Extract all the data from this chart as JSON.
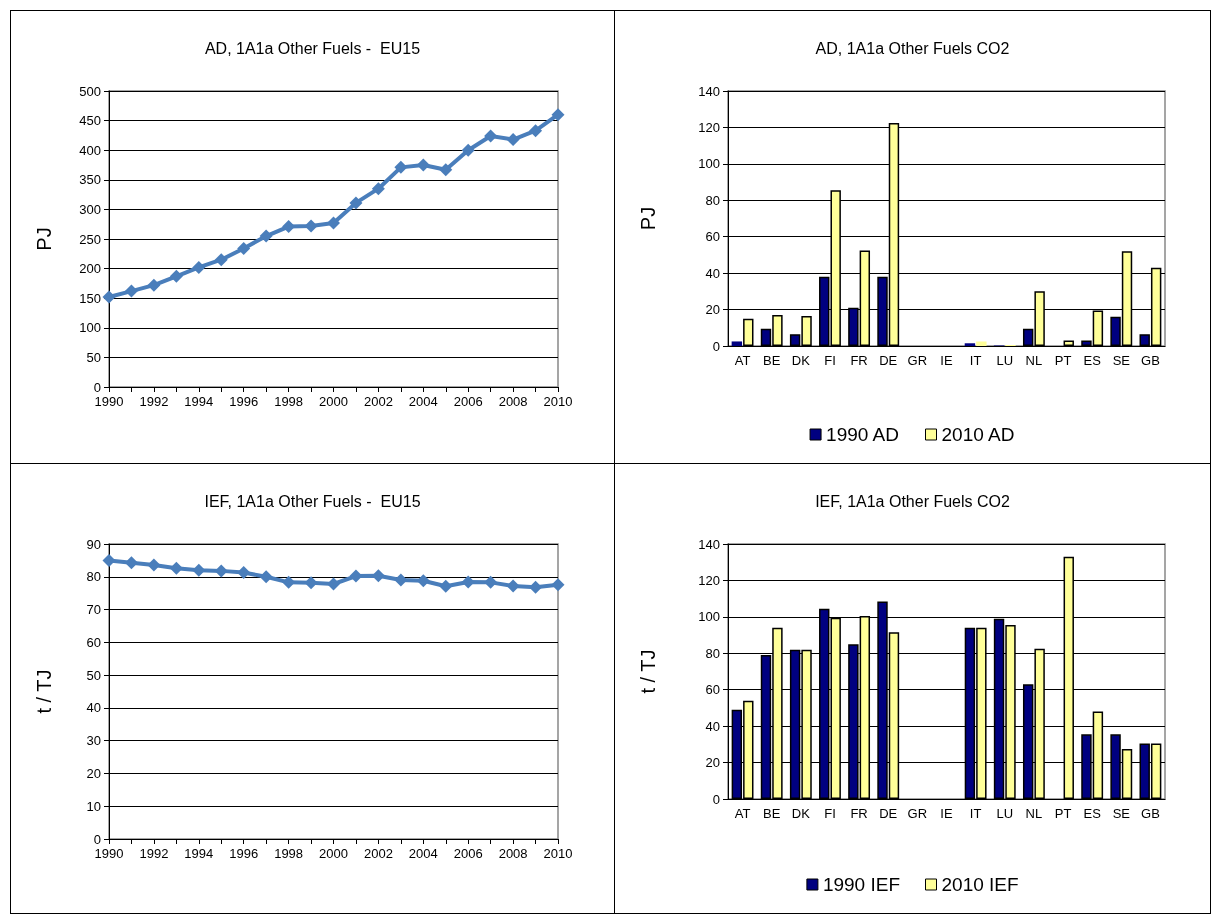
{
  "chart_data": [
    {
      "type": "line",
      "title": "AD, 1A1a Other Fuels -  EU15",
      "ylabel": "PJ",
      "x": [
        1990,
        1991,
        1992,
        1993,
        1994,
        1995,
        1996,
        1997,
        1998,
        1999,
        2000,
        2001,
        2002,
        2003,
        2004,
        2005,
        2006,
        2007,
        2008,
        2009,
        2010
      ],
      "series": [
        {
          "color": "#4a7ebb",
          "values": [
            152,
            162,
            172,
            187,
            202,
            215,
            234,
            255,
            271,
            272,
            277,
            311,
            335,
            371,
            375,
            367,
            400,
            424,
            418,
            433,
            460
          ]
        }
      ],
      "xlim": [
        1990,
        2010
      ],
      "xticks": [
        1990,
        {
          "value": 1991,
          "label": null
        },
        1992,
        {
          "value": 1993,
          "label": null
        },
        1994,
        {
          "value": 1995,
          "label": null
        },
        1996,
        {
          "value": 1997,
          "label": null
        },
        1998,
        {
          "value": 1999,
          "label": null
        },
        2000,
        {
          "value": 2001,
          "label": null
        },
        2002,
        {
          "value": 2003,
          "label": null
        },
        2004,
        {
          "value": 2005,
          "label": null
        },
        2006,
        {
          "value": 2007,
          "label": null
        },
        2008,
        {
          "value": 2009,
          "label": null
        },
        2010
      ],
      "ylim": [
        0,
        500
      ],
      "yticks": [
        0,
        50,
        100,
        150,
        200,
        250,
        300,
        350,
        400,
        450,
        500
      ],
      "grid": "y",
      "legend": false,
      "marker": "diamond",
      "line_style": "solid"
    },
    {
      "type": "bar",
      "title": "AD, 1A1a Other Fuels CO2",
      "ylabel": "PJ",
      "categories": [
        "AT",
        "BE",
        "DK",
        "FI",
        "FR",
        "DE",
        "GR",
        "IE",
        "IT",
        "LU",
        "NL",
        "PT",
        "ES",
        "SE",
        "GB"
      ],
      "series": [
        {
          "name": "1990 AD",
          "color": "#000080",
          "values": [
            2.5,
            9.5,
            6.5,
            38,
            21,
            38,
            null,
            null,
            1.5,
            0.3,
            9.5,
            null,
            3,
            16,
            6.5
          ]
        },
        {
          "name": "2010 AD",
          "color": "#ffff99",
          "values": [
            15,
            17,
            16.5,
            85.5,
            52.5,
            122.5,
            null,
            null,
            2.5,
            0.5,
            30,
            3,
            19.5,
            52,
            43
          ]
        }
      ],
      "ylim": [
        0,
        140
      ],
      "yticks": [
        0,
        20,
        40,
        60,
        80,
        100,
        120,
        140
      ],
      "grid": "y",
      "legend": "bottom"
    },
    {
      "type": "line",
      "title": "IEF, 1A1a Other Fuels -  EU15",
      "ylabel": "t / TJ",
      "x": [
        1990,
        1991,
        1992,
        1993,
        1994,
        1995,
        1996,
        1997,
        1998,
        1999,
        2000,
        2001,
        2002,
        2003,
        2004,
        2005,
        2006,
        2007,
        2008,
        2009,
        2010
      ],
      "series": [
        {
          "color": "#4a7ebb",
          "values": [
            85.0,
            84.3,
            83.6,
            82.6,
            82.0,
            81.8,
            81.3,
            80.0,
            78.3,
            78.2,
            77.8,
            80.2,
            80.3,
            79.0,
            78.8,
            77.1,
            78.4,
            78.3,
            77.2,
            76.8,
            77.6
          ]
        }
      ],
      "xlim": [
        1990,
        2010
      ],
      "xticks": [
        1990,
        {
          "value": 1991,
          "label": null
        },
        1992,
        {
          "value": 1993,
          "label": null
        },
        1994,
        {
          "value": 1995,
          "label": null
        },
        1996,
        {
          "value": 1997,
          "label": null
        },
        1998,
        {
          "value": 1999,
          "label": null
        },
        2000,
        {
          "value": 2001,
          "label": null
        },
        2002,
        {
          "value": 2003,
          "label": null
        },
        2004,
        {
          "value": 2005,
          "label": null
        },
        2006,
        {
          "value": 2007,
          "label": null
        },
        2008,
        {
          "value": 2009,
          "label": null
        },
        2010
      ],
      "ylim": [
        0,
        90
      ],
      "yticks": [
        0,
        10,
        20,
        30,
        40,
        50,
        60,
        70,
        80,
        90
      ],
      "grid": "y",
      "legend": false,
      "marker": "diamond",
      "line_style": "solid"
    },
    {
      "type": "bar",
      "title": "IEF, 1A1a Other Fuels CO2",
      "ylabel": "t / TJ",
      "categories": [
        "AT",
        "BE",
        "DK",
        "FI",
        "FR",
        "DE",
        "GR",
        "IE",
        "IT",
        "LU",
        "NL",
        "PT",
        "ES",
        "SE",
        "GB"
      ],
      "series": [
        {
          "name": "1990 IEF",
          "color": "#000080",
          "values": [
            49,
            79,
            82,
            104.5,
            85,
            108.5,
            null,
            null,
            94,
            99,
            63,
            null,
            35.5,
            35.5,
            30.5
          ]
        },
        {
          "name": "2010 IEF",
          "color": "#ffff99",
          "values": [
            54,
            94,
            82,
            99.5,
            100.5,
            91.5,
            null,
            null,
            94,
            95.5,
            82.5,
            133,
            48,
            27.5,
            30.5
          ]
        }
      ],
      "ylim": [
        0,
        140
      ],
      "yticks": [
        0,
        20,
        40,
        60,
        80,
        100,
        120,
        140
      ],
      "grid": "y",
      "legend": "bottom"
    }
  ]
}
